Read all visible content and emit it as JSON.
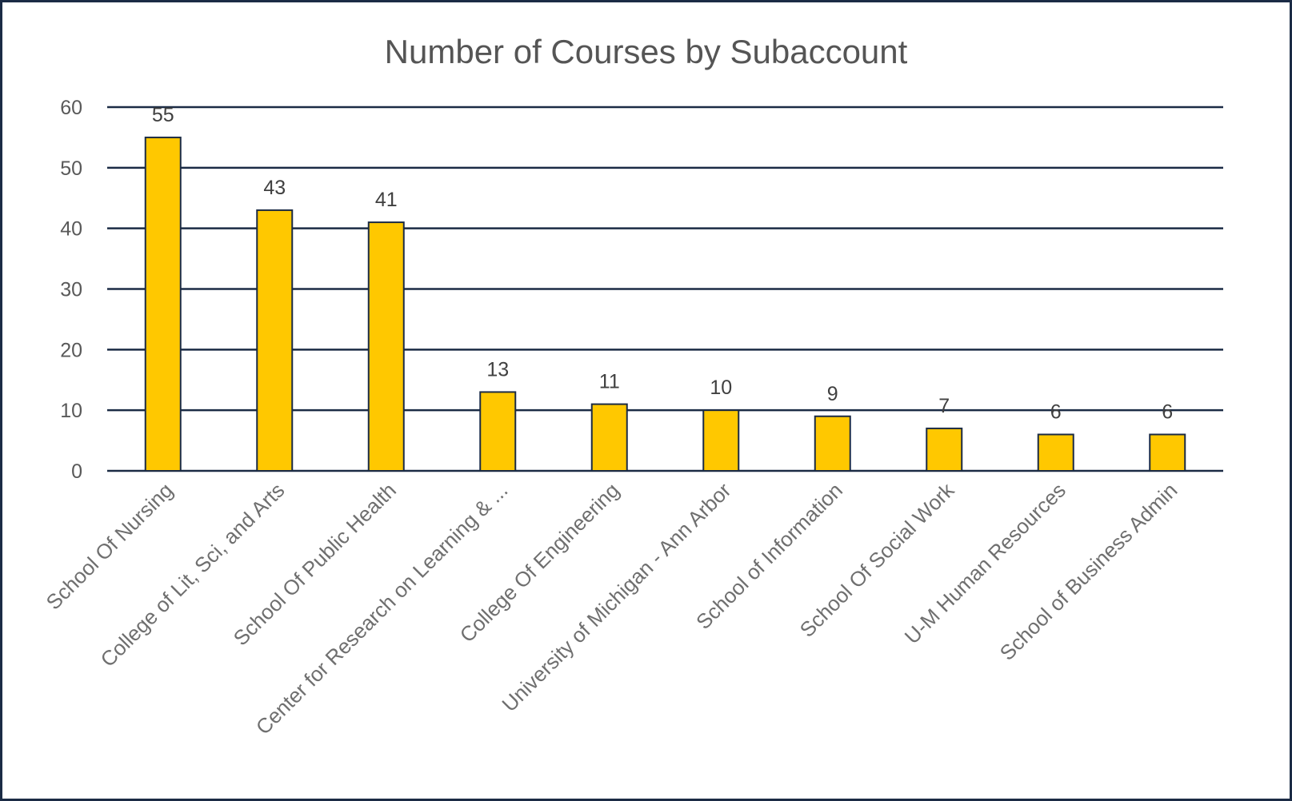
{
  "chart_data": {
    "type": "bar",
    "title": "Number of Courses by Subaccount",
    "categories": [
      "School Of Nursing",
      "College of Lit, Sci, and Arts",
      "School Of Public Health",
      "Center for Research on Learning & ...",
      "College Of Engineering",
      "University of Michigan - Ann Arbor",
      "School of Information",
      "School Of Social Work",
      "U-M Human Resources",
      "School of Business Admin"
    ],
    "values": [
      55,
      43,
      41,
      13,
      11,
      10,
      9,
      7,
      6,
      6
    ],
    "ylim": [
      0,
      60
    ],
    "yticks": [
      0,
      10,
      20,
      30,
      40,
      50,
      60
    ],
    "grid": true,
    "data_labels": true,
    "colors": {
      "bar_fill": "#FFC800",
      "bar_stroke": "#1B2B45",
      "gridline": "#1B2B45",
      "frame": "#1B2B45"
    }
  }
}
